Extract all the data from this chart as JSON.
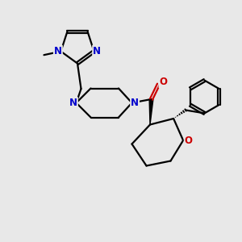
{
  "bg_color": "#e8e8e8",
  "bond_color": "#000000",
  "nitrogen_color": "#0000cc",
  "oxygen_color": "#cc0000",
  "line_width": 1.6,
  "figsize": [
    3.0,
    3.0
  ],
  "dpi": 100,
  "xlim": [
    0,
    10
  ],
  "ylim": [
    0,
    10
  ]
}
